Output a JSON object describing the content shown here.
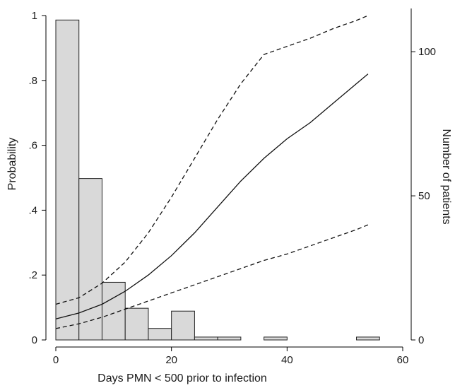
{
  "chart_data": {
    "type": "bar",
    "xlabel": "Days PMN < 500 prior to infection",
    "ylabel_left": "Probability",
    "ylabel_right": "Number of patients",
    "xlim": [
      0,
      60
    ],
    "ylim_left": [
      0,
      1
    ],
    "ylim_right": [
      0,
      115
    ],
    "x_ticks": [
      {
        "value": 0,
        "label": "0"
      },
      {
        "value": 20,
        "label": "20"
      },
      {
        "value": 40,
        "label": "40"
      },
      {
        "value": 60,
        "label": "60"
      }
    ],
    "left_ticks": [
      {
        "value": 0,
        "label": "0"
      },
      {
        "value": 0.2,
        "label": ".2"
      },
      {
        "value": 0.4,
        "label": ".4"
      },
      {
        "value": 0.6,
        "label": ".6"
      },
      {
        "value": 0.8,
        "label": ".8"
      },
      {
        "value": 1,
        "label": "1"
      }
    ],
    "right_ticks": [
      {
        "value": 0,
        "label": "0"
      },
      {
        "value": 50,
        "label": "50"
      },
      {
        "value": 100,
        "label": "100"
      }
    ],
    "histogram": {
      "axis": "right",
      "fill": "#d9d9d9",
      "bins": [
        {
          "x0": 0,
          "x1": 4,
          "count": 111
        },
        {
          "x0": 4,
          "x1": 8,
          "count": 56
        },
        {
          "x0": 8,
          "x1": 12,
          "count": 20
        },
        {
          "x0": 12,
          "x1": 16,
          "count": 11
        },
        {
          "x0": 16,
          "x1": 20,
          "count": 4
        },
        {
          "x0": 20,
          "x1": 24,
          "count": 10
        },
        {
          "x0": 24,
          "x1": 28,
          "count": 1
        },
        {
          "x0": 28,
          "x1": 32,
          "count": 1
        },
        {
          "x0": 36,
          "x1": 40,
          "count": 1
        },
        {
          "x0": 52,
          "x1": 56,
          "count": 1
        }
      ]
    },
    "series": [
      {
        "style": "solid",
        "axis": "left",
        "x": [
          0,
          4,
          8,
          12,
          16,
          20,
          24,
          28,
          32,
          36,
          40,
          44,
          48,
          52,
          54
        ],
        "y": [
          0.065,
          0.083,
          0.11,
          0.15,
          0.2,
          0.26,
          0.33,
          0.41,
          0.49,
          0.56,
          0.62,
          0.67,
          0.73,
          0.79,
          0.82
        ]
      },
      {
        "style": "dashed",
        "axis": "left",
        "x": [
          0,
          4,
          8,
          12,
          16,
          20,
          24,
          28,
          32,
          36,
          40,
          44,
          48,
          52,
          54
        ],
        "y": [
          0.11,
          0.13,
          0.175,
          0.24,
          0.33,
          0.44,
          0.56,
          0.68,
          0.79,
          0.88,
          0.905,
          0.93,
          0.96,
          0.985,
          1.0
        ]
      },
      {
        "style": "dashed",
        "axis": "left",
        "x": [
          0,
          4,
          8,
          12,
          16,
          20,
          24,
          28,
          32,
          36,
          40,
          44,
          48,
          52,
          54
        ],
        "y": [
          0.035,
          0.05,
          0.07,
          0.095,
          0.12,
          0.145,
          0.17,
          0.195,
          0.22,
          0.245,
          0.265,
          0.29,
          0.315,
          0.34,
          0.355
        ]
      }
    ]
  }
}
